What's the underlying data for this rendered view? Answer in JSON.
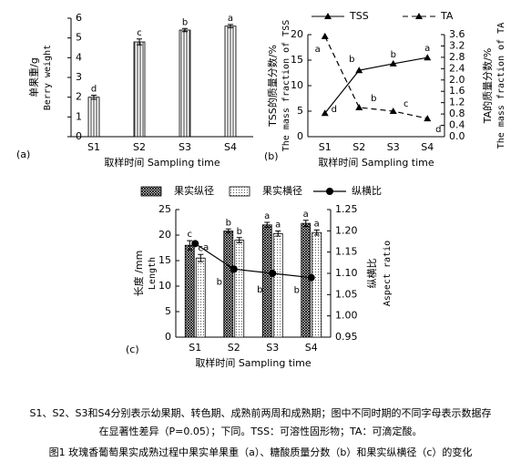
{
  "chart_data": [
    {
      "type": "bar",
      "panel_label": "(a)",
      "y_label": [
        "单果重/g",
        "Berry weight"
      ],
      "x_label": "取样时间 Sampling time",
      "categories": [
        "S1",
        "S2",
        "S3",
        "S4"
      ],
      "series": [
        {
          "name": "单果重",
          "color": "#000000",
          "pattern": "vertical-hatch",
          "values": [
            2.0,
            4.8,
            5.4,
            5.6
          ],
          "errors": [
            0.1,
            0.15,
            0.08,
            0.08
          ],
          "annotations": [
            "d",
            "c",
            "b",
            "a"
          ]
        }
      ],
      "ylim": [
        0,
        6
      ],
      "yticks": [
        0,
        1,
        2,
        3,
        4,
        5,
        6
      ]
    },
    {
      "type": "line",
      "panel_label": "(b)",
      "y_label": [
        "TSS的质量分数/%",
        "The mass fraction of TSS"
      ],
      "y2_label": [
        "TA的质量分数/%",
        "The mass fraction of TA"
      ],
      "x_label": "取样时间 Sampling time",
      "categories": [
        "S1",
        "S2",
        "S3",
        "S4"
      ],
      "series": [
        {
          "name": "TSS",
          "color": "#000000",
          "dashed": false,
          "values": [
            4.6,
            13.0,
            14.3,
            15.5
          ],
          "annotations": [
            "d",
            "b",
            "b",
            "a"
          ]
        },
        {
          "name": "TA",
          "color": "#000000",
          "dashed": true,
          "axis": "y2",
          "values": [
            3.54,
            1.03,
            0.9,
            0.64
          ],
          "annotations": [
            "a",
            "b",
            "c",
            "d"
          ]
        }
      ],
      "ylim": [
        0,
        20
      ],
      "yticks": [
        0,
        5,
        10,
        15,
        20
      ],
      "y2lim": [
        0,
        3.6
      ],
      "y2ticks": [
        {
          "value": 0,
          "label": "0.0"
        },
        0.4,
        0.8,
        1.2,
        1.6,
        {
          "value": 2,
          "label": "2.0"
        },
        2.4,
        2.8,
        3.2,
        3.6
      ]
    },
    {
      "type": "combo",
      "panel_label": "(c)",
      "y_label": [
        "长度 /mm",
        "Length"
      ],
      "y2_label": [
        "纵横比",
        "Aspect ratio"
      ],
      "x_label": "取样时间 Sampling time",
      "categories": [
        "S1",
        "S2",
        "S3",
        "S4"
      ],
      "series": [
        {
          "name": "果实纵径",
          "type": "bar",
          "color": "#000000",
          "pattern": "cross-hatch",
          "values": [
            18.0,
            20.8,
            22.0,
            22.3
          ],
          "errors": [
            0.9,
            0.4,
            0.5,
            0.6
          ],
          "annotations": [
            "c",
            "b",
            "a",
            "a"
          ]
        },
        {
          "name": "果实横径",
          "type": "bar",
          "color": "#000000",
          "pattern": "dots",
          "values": [
            15.5,
            19.0,
            20.3,
            20.5
          ],
          "errors": [
            0.7,
            0.5,
            0.5,
            0.5
          ],
          "annotations": [
            "c",
            "b",
            "a",
            "a"
          ]
        },
        {
          "name": "纵横比",
          "type": "line",
          "color": "#000000",
          "axis": "y2",
          "values": [
            1.17,
            1.11,
            1.1,
            1.09
          ],
          "annotations": [
            "a",
            "b",
            "b",
            "b"
          ]
        }
      ],
      "ylim": [
        0,
        25
      ],
      "yticks": [
        0,
        5,
        10,
        15,
        20,
        25
      ],
      "y2lim": [
        0.95,
        1.25
      ],
      "y2ticks": [
        0.95,
        {
          "value": 1,
          "label": "1.00"
        },
        1.05,
        {
          "value": 1.1,
          "label": "1.10"
        },
        1.15,
        {
          "value": 1.2,
          "label": "1.20"
        },
        1.25
      ]
    }
  ],
  "caption": {
    "note": [
      "S1、S2、S3和S4分别表示幼果期、转色期、成熟前两周和成熟期；图中不同时期的不同字母表示数据存",
      "在显著性差异（P=0.05）；下同。TSS：可溶性固形物；TA：可滴定酸。"
    ],
    "title": "图1 玫瑰香葡萄果实成熟过程中果实单果重（a）、糖酸质量分数（b）和果实纵横径（c）的变化"
  }
}
